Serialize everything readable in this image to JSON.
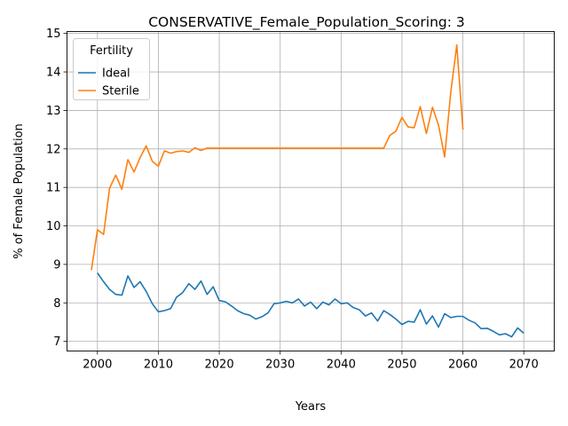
{
  "chart_data": {
    "type": "line",
    "title": "CONSERVATIVE_Female_Population_Scoring: 3",
    "xlabel": "Years",
    "ylabel": "% of Female Population",
    "xlim": [
      1995,
      2075
    ],
    "ylim": [
      6.75,
      15.05
    ],
    "xticks": [
      2000,
      2010,
      2020,
      2030,
      2040,
      2050,
      2060,
      2070
    ],
    "yticks": [
      7,
      8,
      9,
      10,
      11,
      12,
      13,
      14,
      15
    ],
    "grid": true,
    "legend": {
      "title": "Fertility",
      "placement": "top-left"
    },
    "series": [
      {
        "name": "Ideal",
        "color": "#1f77b4",
        "x": [
          2000,
          2001,
          2002,
          2003,
          2004,
          2005,
          2006,
          2007,
          2008,
          2009,
          2010,
          2011,
          2012,
          2013,
          2014,
          2015,
          2016,
          2017,
          2018,
          2019,
          2020,
          2021,
          2022,
          2023,
          2024,
          2025,
          2026,
          2027,
          2028,
          2029,
          2030,
          2031,
          2032,
          2033,
          2034,
          2035,
          2036,
          2037,
          2038,
          2039,
          2040,
          2041,
          2042,
          2043,
          2044,
          2045,
          2046,
          2047,
          2048,
          2049,
          2050,
          2051,
          2052,
          2053,
          2054,
          2055,
          2056,
          2057,
          2058,
          2059,
          2060,
          2061,
          2062,
          2063,
          2064,
          2065,
          2066,
          2067,
          2068,
          2069,
          2070
        ],
        "values": [
          8.78,
          8.55,
          8.35,
          8.22,
          8.2,
          8.7,
          8.4,
          8.55,
          8.3,
          7.98,
          7.77,
          7.8,
          7.85,
          8.15,
          8.27,
          8.5,
          8.35,
          8.57,
          8.22,
          8.42,
          8.06,
          8.03,
          7.92,
          7.8,
          7.72,
          7.68,
          7.58,
          7.64,
          7.74,
          7.98,
          8.0,
          8.04,
          8.0,
          8.1,
          7.92,
          8.02,
          7.85,
          8.02,
          7.95,
          8.1,
          7.98,
          8.0,
          7.88,
          7.82,
          7.66,
          7.74,
          7.53,
          7.8,
          7.7,
          7.58,
          7.44,
          7.52,
          7.5,
          7.82,
          7.45,
          7.66,
          7.37,
          7.72,
          7.62,
          7.65,
          7.65,
          7.55,
          7.48,
          7.33,
          7.34,
          7.26,
          7.17,
          7.2,
          7.12,
          7.35,
          7.21
        ]
      },
      {
        "name": "Sterile",
        "color": "#ff7f0e",
        "x": [
          1999,
          2000,
          2001,
          2002,
          2003,
          2004,
          2005,
          2006,
          2007,
          2008,
          2009,
          2010,
          2011,
          2012,
          2013,
          2014,
          2015,
          2016,
          2017,
          2018,
          2019,
          2020,
          2025,
          2030,
          2035,
          2040,
          2045,
          2047,
          2048,
          2049,
          2050,
          2051,
          2052,
          2053,
          2054,
          2055,
          2056,
          2057,
          2058,
          2059,
          2060
        ],
        "values": [
          8.85,
          9.9,
          9.78,
          10.98,
          11.32,
          10.95,
          11.72,
          11.4,
          11.77,
          12.08,
          11.68,
          11.55,
          11.95,
          11.89,
          11.93,
          11.95,
          11.91,
          12.03,
          11.96,
          12.02,
          12.02,
          12.02,
          12.02,
          12.02,
          12.02,
          12.02,
          12.02,
          12.02,
          12.35,
          12.46,
          12.82,
          12.57,
          12.55,
          13.1,
          12.4,
          13.08,
          12.62,
          11.79,
          13.45,
          14.7,
          12.5
        ]
      }
    ]
  }
}
